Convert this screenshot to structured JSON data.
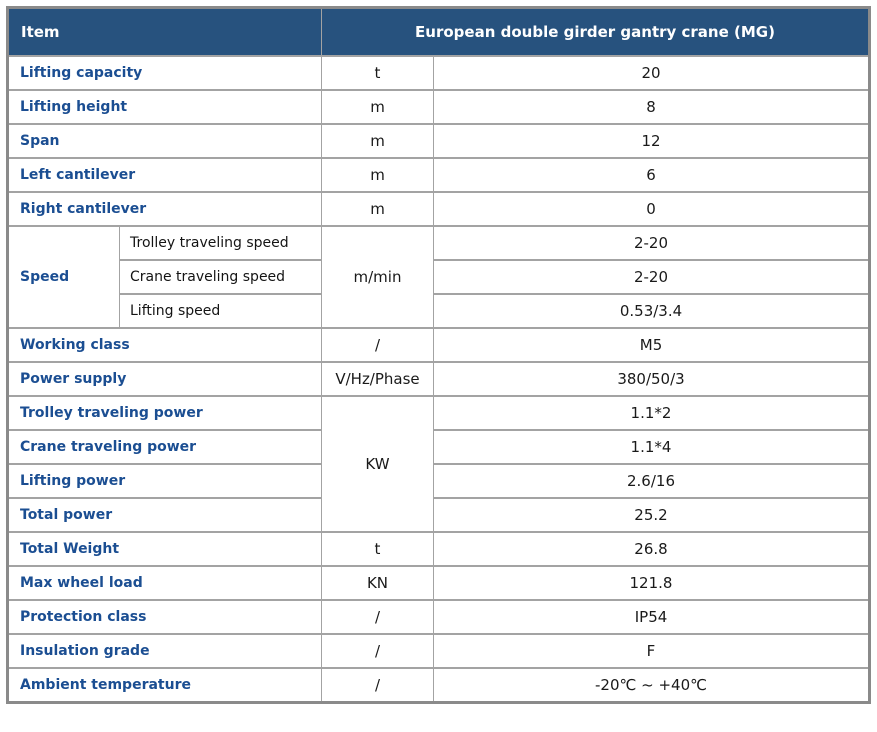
{
  "colors": {
    "header_bg": "#27527E",
    "header_text": "#ffffff",
    "label_text": "#1B4E92",
    "body_text": "#1a1a1a",
    "grid_line": "#a3a3a3",
    "outer_border": "#8a8a8a"
  },
  "table": {
    "header": {
      "item_label": "Item",
      "product_label": "European double girder gantry crane (MG)"
    },
    "rows": [
      {
        "cells": [
          {
            "text": "Lifting capacity",
            "type": "label",
            "colspan": 2
          },
          {
            "text": "t",
            "type": "unit"
          },
          {
            "text": "20",
            "type": "value"
          }
        ]
      },
      {
        "cells": [
          {
            "text": "Lifting height",
            "type": "label",
            "colspan": 2
          },
          {
            "text": "m",
            "type": "unit"
          },
          {
            "text": "8",
            "type": "value"
          }
        ]
      },
      {
        "cells": [
          {
            "text": "Span",
            "type": "label",
            "colspan": 2
          },
          {
            "text": "m",
            "type": "unit"
          },
          {
            "text": "12",
            "type": "value"
          }
        ]
      },
      {
        "cells": [
          {
            "text": "Left cantilever",
            "type": "label",
            "colspan": 2
          },
          {
            "text": "m",
            "type": "unit"
          },
          {
            "text": "6",
            "type": "value"
          }
        ]
      },
      {
        "cells": [
          {
            "text": "Right cantilever",
            "type": "label",
            "colspan": 2
          },
          {
            "text": "m",
            "type": "unit"
          },
          {
            "text": "0",
            "type": "value"
          }
        ]
      },
      {
        "cells": [
          {
            "text": "Speed",
            "type": "label",
            "rowspan": 3
          },
          {
            "text": "Trolley traveling speed",
            "type": "sublabel"
          },
          {
            "text": "m/min",
            "type": "unit",
            "rowspan": 3
          },
          {
            "text": "2-20",
            "type": "value"
          }
        ]
      },
      {
        "cells": [
          {
            "text": "Crane traveling speed",
            "type": "sublabel"
          },
          {
            "text": "2-20",
            "type": "value"
          }
        ]
      },
      {
        "cells": [
          {
            "text": "Lifting speed",
            "type": "sublabel"
          },
          {
            "text": "0.53/3.4",
            "type": "value"
          }
        ]
      },
      {
        "cells": [
          {
            "text": "Working class",
            "type": "label",
            "colspan": 2
          },
          {
            "text": "/",
            "type": "unit"
          },
          {
            "text": "M5",
            "type": "value"
          }
        ]
      },
      {
        "cells": [
          {
            "text": "Power supply",
            "type": "label",
            "colspan": 2
          },
          {
            "text": "V/Hz/Phase",
            "type": "unit"
          },
          {
            "text": "380/50/3",
            "type": "value"
          }
        ]
      },
      {
        "cells": [
          {
            "text": "Trolley traveling power",
            "type": "label",
            "colspan": 2
          },
          {
            "text": "KW",
            "type": "unit",
            "rowspan": 4
          },
          {
            "text": "1.1*2",
            "type": "value"
          }
        ]
      },
      {
        "cells": [
          {
            "text": "Crane traveling power",
            "type": "label",
            "colspan": 2
          },
          {
            "text": "1.1*4",
            "type": "value"
          }
        ]
      },
      {
        "cells": [
          {
            "text": "Lifting power",
            "type": "label",
            "colspan": 2
          },
          {
            "text": "2.6/16",
            "type": "value"
          }
        ]
      },
      {
        "cells": [
          {
            "text": "Total power",
            "type": "label",
            "colspan": 2
          },
          {
            "text": "25.2",
            "type": "value"
          }
        ]
      },
      {
        "cells": [
          {
            "text": "Total Weight",
            "type": "label",
            "colspan": 2
          },
          {
            "text": "t",
            "type": "unit"
          },
          {
            "text": "26.8",
            "type": "value"
          }
        ]
      },
      {
        "cells": [
          {
            "text": "Max wheel load",
            "type": "label",
            "colspan": 2
          },
          {
            "text": "KN",
            "type": "unit"
          },
          {
            "text": "121.8",
            "type": "value"
          }
        ]
      },
      {
        "cells": [
          {
            "text": "Protection class",
            "type": "label",
            "colspan": 2
          },
          {
            "text": "/",
            "type": "unit"
          },
          {
            "text": "IP54",
            "type": "value"
          }
        ]
      },
      {
        "cells": [
          {
            "text": "Insulation grade",
            "type": "label",
            "colspan": 2
          },
          {
            "text": "/",
            "type": "unit"
          },
          {
            "text": "F",
            "type": "value"
          }
        ]
      },
      {
        "cells": [
          {
            "text": "Ambient temperature",
            "type": "label",
            "colspan": 2
          },
          {
            "text": "/",
            "type": "unit"
          },
          {
            "text": "-20℃ ~ +40℃",
            "type": "value"
          }
        ]
      }
    ]
  }
}
